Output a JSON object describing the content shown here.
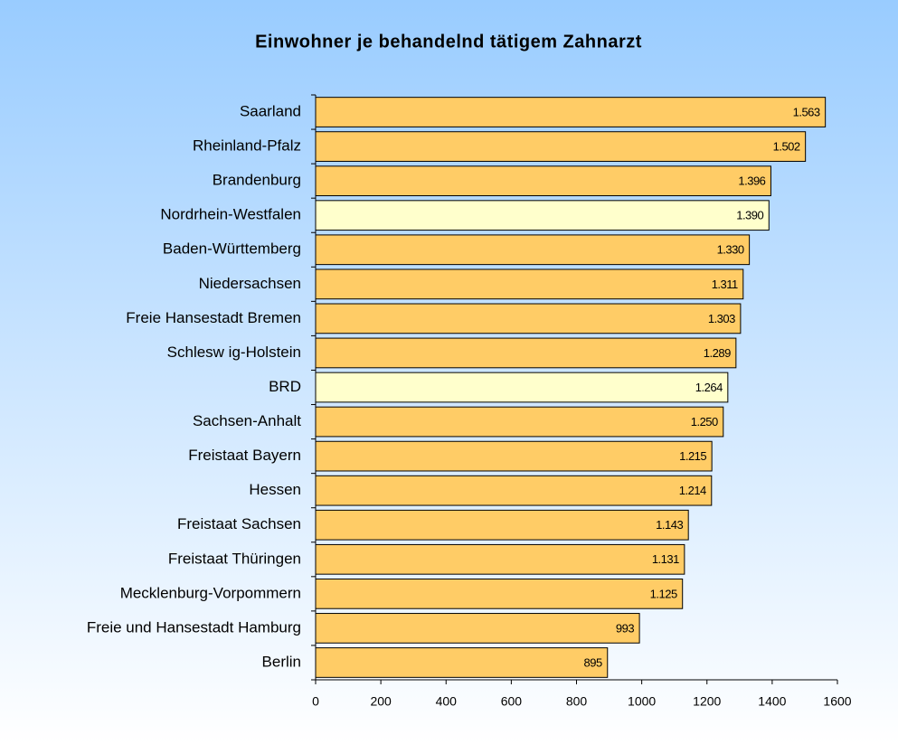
{
  "chart_data": {
    "type": "barh",
    "title": "Einwohner je behandelnd tätigem Zahnarzt",
    "categories": [
      "Saarland",
      "Rheinland-Pfalz",
      "Brandenburg",
      "Nordrhein-Westfalen",
      "Baden-Württemberg",
      "Niedersachsen",
      "Freie Hansestadt Bremen",
      "Schlesw ig-Holstein",
      "BRD",
      "Sachsen-Anhalt",
      "Freistaat Bayern",
      "Hessen",
      "Freistaat Sachsen",
      "Freistaat Thüringen",
      "Mecklenburg-Vorpommern",
      "Freie und Hansestadt Hamburg",
      "Berlin"
    ],
    "values": [
      1563,
      1502,
      1396,
      1390,
      1330,
      1311,
      1303,
      1289,
      1264,
      1250,
      1215,
      1214,
      1143,
      1131,
      1125,
      993,
      895
    ],
    "value_labels": [
      "1.563",
      "1.502",
      "1.396",
      "1.390",
      "1.330",
      "1.311",
      "1.303",
      "1.289",
      "1.264",
      "1.250",
      "1.215",
      "1.214",
      "1.143",
      "1.131",
      "1.125",
      "993",
      "895"
    ],
    "colors": [
      "#ffcc66",
      "#ffcc66",
      "#ffcc66",
      "#ffffcc",
      "#ffcc66",
      "#ffcc66",
      "#ffcc66",
      "#ffcc66",
      "#ffffcc",
      "#ffcc66",
      "#ffcc66",
      "#ffcc66",
      "#ffcc66",
      "#ffcc66",
      "#ffcc66",
      "#ffcc66",
      "#ffcc66"
    ],
    "xlim": [
      0,
      1600
    ],
    "xticks": [
      0,
      200,
      400,
      600,
      800,
      1000,
      1200,
      1400,
      1600
    ]
  }
}
